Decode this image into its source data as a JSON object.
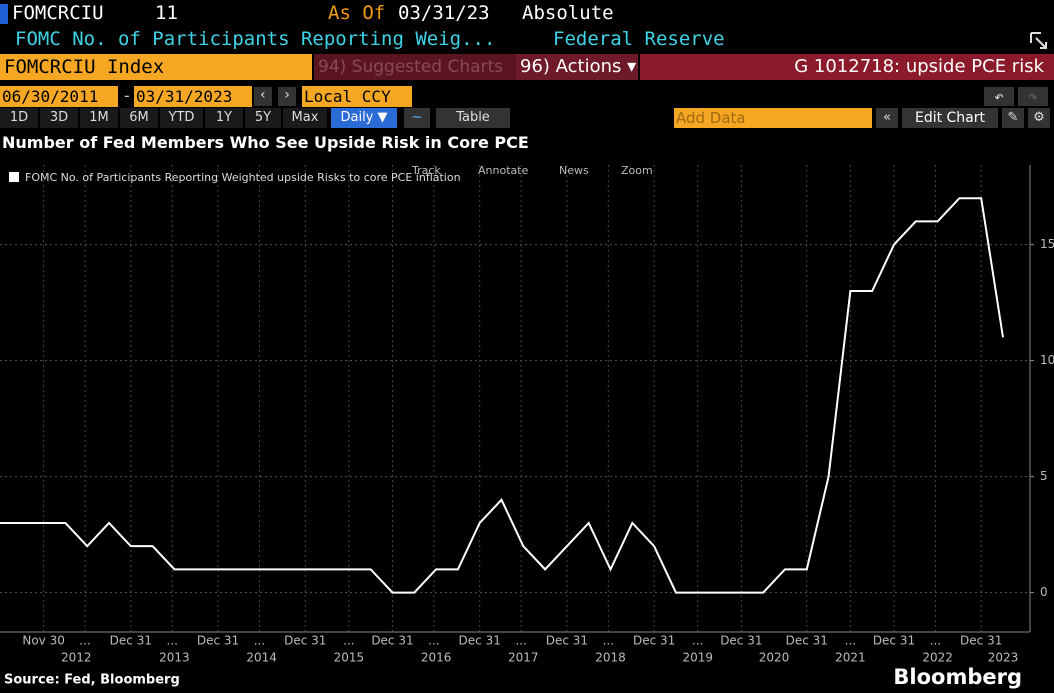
{
  "header": {
    "ticker": "FOMCRCIU",
    "last": 11,
    "as_of_label": "As Of",
    "as_of_date": "03/31/23",
    "mode": "Absolute",
    "description": "FOMC No. of Participants Reporting Weig...",
    "source_name": "Federal Reserve"
  },
  "toolbar": {
    "security": "FOMCRCIU Index",
    "suggested": "94) Suggested Charts",
    "actions": "96) Actions ▾",
    "chart_id": "G 1012718: upside PCE risk"
  },
  "range": {
    "start": "06/30/2011",
    "end": "03/31/2023",
    "currency": "Local CCY"
  },
  "periods": [
    "1D",
    "3D",
    "1M",
    "6M",
    "YTD",
    "1Y",
    "5Y",
    "Max"
  ],
  "frequency": "Daily ▼",
  "table_button": "Table",
  "add_data": "Add Data",
  "edit_chart": "Edit Chart",
  "chart_data": {
    "type": "line",
    "title": "Number of Fed Members Who See Upside Risk in Core PCE",
    "tools": [
      "Track",
      "Annotate",
      "News",
      "Zoom"
    ],
    "categories": [
      null,
      null,
      null,
      null,
      null,
      null,
      null,
      null,
      null,
      null,
      null,
      null,
      null,
      null,
      null,
      null,
      null,
      null,
      null,
      null,
      null,
      null,
      null,
      null,
      null,
      null,
      null,
      null,
      null,
      null,
      null,
      null,
      null,
      null,
      null,
      null,
      null,
      null,
      null,
      null,
      null,
      null,
      null,
      null,
      null,
      null,
      null
    ],
    "series": [
      {
        "name": "FOMC No. of Participants Reporting Weighted upside Risks to core PCE inflation",
        "color": "#ffffff",
        "values": [
          3,
          3,
          3,
          3,
          2,
          3,
          2,
          2,
          1,
          1,
          1,
          1,
          1,
          1,
          1,
          1,
          1,
          1,
          0,
          0,
          1,
          1,
          3,
          4,
          2,
          1,
          2,
          3,
          1,
          3,
          2,
          0,
          0,
          0,
          0,
          0,
          1,
          1,
          5,
          13,
          13,
          15,
          16,
          16,
          17,
          17,
          11
        ]
      }
    ],
    "ylim": [
      -1.7,
      18
    ],
    "yticks": [
      0,
      5,
      10,
      15
    ],
    "xticks": [
      {
        "value": 2,
        "label": "Nov 30"
      },
      {
        "value": 3.9,
        "label": "..."
      },
      {
        "value": 6,
        "label": "Dec 31"
      },
      {
        "value": 7.9,
        "label": "..."
      },
      {
        "value": 10,
        "label": "Dec 31"
      },
      {
        "value": 11.9,
        "label": "..."
      },
      {
        "value": 14,
        "label": "Dec 31"
      },
      {
        "value": 16,
        "label": "..."
      },
      {
        "value": 18,
        "label": "Dec 31"
      },
      {
        "value": 19.9,
        "label": "..."
      },
      {
        "value": 22,
        "label": "Dec 31"
      },
      {
        "value": 23.9,
        "label": "..."
      },
      {
        "value": 26,
        "label": "Dec 31"
      },
      {
        "value": 27.9,
        "label": "..."
      },
      {
        "value": 30,
        "label": "Dec 31"
      },
      {
        "value": 32,
        "label": "..."
      },
      {
        "value": 34,
        "label": "Dec 31"
      },
      {
        "value": 37,
        "label": "Dec 31"
      },
      {
        "value": 39,
        "label": "..."
      },
      {
        "value": 41,
        "label": "Dec 31"
      },
      {
        "value": 42.9,
        "label": "..."
      },
      {
        "value": 45,
        "label": "Dec 31"
      }
    ],
    "year_labels": [
      {
        "value": 3.5,
        "label": "2012"
      },
      {
        "value": 8,
        "label": "2013"
      },
      {
        "value": 12,
        "label": "2014"
      },
      {
        "value": 16,
        "label": "2015"
      },
      {
        "value": 20,
        "label": "2016"
      },
      {
        "value": 24,
        "label": "2017"
      },
      {
        "value": 28,
        "label": "2018"
      },
      {
        "value": 32,
        "label": "2019"
      },
      {
        "value": 35.5,
        "label": "2020"
      },
      {
        "value": 39,
        "label": "2021"
      },
      {
        "value": 43,
        "label": "2022"
      },
      {
        "value": 46,
        "label": "2023"
      }
    ],
    "grid": true,
    "source": "Source: Fed, Bloomberg",
    "brand": "Bloomberg"
  }
}
